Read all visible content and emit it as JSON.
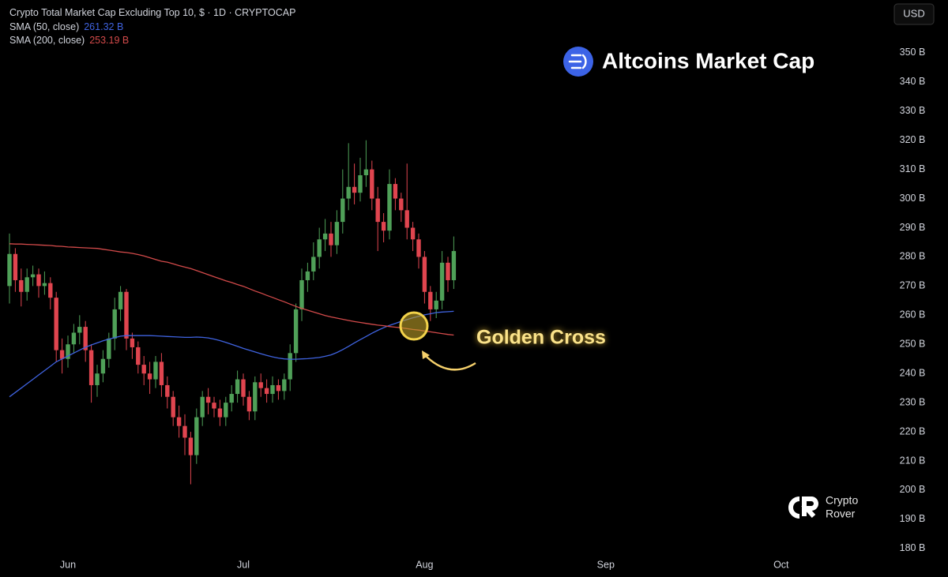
{
  "chart_data": {
    "type": "candlestick",
    "title": "Crypto Total Market Cap Excluding Top 10, $ · 1D · CRYPTOCAP",
    "currency": "USD",
    "up_color": "#4fa058",
    "down_color": "#e0454f",
    "categories": [
      null,
      null,
      null,
      null,
      null,
      null,
      null,
      null,
      null,
      null,
      "Jun",
      null,
      null,
      null,
      null,
      null,
      null,
      null,
      null,
      null,
      null,
      null,
      null,
      null,
      null,
      null,
      null,
      null,
      null,
      null,
      null,
      null,
      null,
      null,
      null,
      null,
      null,
      null,
      null,
      null,
      "Jul",
      null,
      null,
      null,
      null,
      null,
      null,
      null,
      null,
      null,
      null,
      null,
      null,
      null,
      null,
      null,
      null,
      null,
      null,
      null,
      null,
      null,
      null,
      null,
      null,
      null,
      null,
      null,
      null,
      null,
      null,
      "Aug",
      null,
      null,
      null,
      null,
      null,
      null,
      null,
      null,
      null,
      null,
      null,
      null,
      null,
      null,
      null,
      null,
      null,
      null,
      null,
      null,
      null,
      null,
      null,
      null,
      null,
      null,
      null,
      null,
      null,
      null,
      "Sep",
      null,
      null,
      null,
      null,
      null,
      null,
      null,
      null,
      null,
      null,
      null,
      null,
      null,
      null,
      null,
      null,
      null,
      null,
      null,
      null,
      null,
      null,
      null,
      null,
      null,
      null,
      null,
      null,
      null,
      "Oct",
      null,
      null,
      null,
      null,
      null,
      null,
      null,
      null,
      null,
      null,
      null,
      null,
      null,
      null,
      null
    ],
    "open": [
      270,
      281,
      272,
      268,
      273,
      274,
      270,
      271,
      266,
      248,
      245,
      250,
      254,
      256,
      248,
      236,
      240,
      245,
      252,
      262,
      268,
      252,
      249,
      243,
      240,
      238,
      244,
      236,
      232,
      225,
      222,
      218,
      212,
      225,
      232,
      230,
      228,
      225,
      230,
      233,
      238,
      232,
      227,
      237,
      235,
      233,
      236,
      234,
      238,
      247,
      262,
      272,
      275,
      280,
      286,
      288,
      284,
      292,
      300,
      304,
      302,
      308,
      310,
      300,
      292,
      289,
      305,
      300,
      296,
      290,
      286,
      280,
      268,
      262,
      265,
      278,
      272,
      null,
      null,
      null,
      null,
      null,
      null,
      null,
      null,
      null,
      null,
      null,
      null,
      null,
      null,
      null,
      null,
      null,
      null,
      null,
      null,
      null,
      null,
      null,
      null,
      null,
      null,
      null,
      null,
      null,
      null,
      null,
      null,
      null,
      null,
      null,
      null,
      null,
      null,
      null,
      null,
      null,
      null,
      null,
      null,
      null,
      null,
      null,
      null,
      null,
      null,
      null,
      null,
      null,
      null,
      null,
      null,
      null,
      null,
      null,
      null,
      null,
      null,
      null,
      null,
      null,
      null,
      null,
      null,
      null,
      null,
      null
    ],
    "high": [
      288,
      283,
      276,
      276,
      277,
      276,
      275,
      273,
      268,
      252,
      253,
      257,
      260,
      258,
      250,
      243,
      248,
      254,
      266,
      270,
      269,
      254,
      251,
      246,
      244,
      246,
      247,
      239,
      234,
      229,
      226,
      220,
      228,
      234,
      235,
      232,
      231,
      232,
      236,
      241,
      240,
      234,
      239,
      240,
      238,
      239,
      238,
      240,
      250,
      264,
      276,
      278,
      285,
      290,
      293,
      292,
      296,
      310,
      319,
      312,
      314,
      320,
      313,
      304,
      295,
      310,
      307,
      302,
      312,
      292,
      288,
      282,
      270,
      268,
      282,
      280,
      287,
      null,
      null,
      null,
      null,
      null,
      null,
      null,
      null,
      null,
      null,
      null,
      null,
      null,
      null,
      null,
      null,
      null,
      null,
      null,
      null,
      null,
      null,
      null,
      null,
      null,
      null,
      null,
      null,
      null,
      null,
      null,
      null,
      null,
      null,
      null,
      null,
      null,
      null,
      null,
      null,
      null,
      null,
      null,
      null,
      null,
      null,
      null,
      null,
      null,
      null,
      null,
      null,
      null,
      null,
      null,
      null,
      null,
      null,
      null,
      null,
      null,
      null,
      null,
      null,
      null,
      null,
      null,
      null,
      null,
      null,
      null
    ],
    "low": [
      264,
      268,
      263,
      265,
      270,
      266,
      267,
      262,
      244,
      240,
      242,
      247,
      250,
      244,
      230,
      232,
      237,
      242,
      248,
      258,
      248,
      245,
      240,
      236,
      233,
      235,
      232,
      228,
      222,
      218,
      212,
      202,
      209,
      222,
      226,
      225,
      222,
      222,
      227,
      230,
      229,
      224,
      224,
      232,
      230,
      230,
      231,
      231,
      234,
      244,
      258,
      268,
      272,
      276,
      282,
      280,
      281,
      288,
      296,
      298,
      299,
      304,
      296,
      282,
      285,
      286,
      296,
      292,
      286,
      282,
      276,
      264,
      258,
      259,
      262,
      268,
      269,
      null,
      null,
      null,
      null,
      null,
      null,
      null,
      null,
      null,
      null,
      null,
      null,
      null,
      null,
      null,
      null,
      null,
      null,
      null,
      null,
      null,
      null,
      null,
      null,
      null,
      null,
      null,
      null,
      null,
      null,
      null,
      null,
      null,
      null,
      null,
      null,
      null,
      null,
      null,
      null,
      null,
      null,
      null,
      null,
      null,
      null,
      null,
      null,
      null,
      null,
      null,
      null,
      null,
      null,
      null,
      null,
      null,
      null,
      null,
      null,
      null,
      null,
      null,
      null,
      null,
      null,
      null,
      null,
      null,
      null,
      null
    ],
    "close": [
      281,
      272,
      268,
      273,
      274,
      270,
      271,
      266,
      248,
      245,
      250,
      254,
      256,
      248,
      236,
      240,
      245,
      252,
      262,
      268,
      252,
      249,
      243,
      240,
      238,
      244,
      236,
      232,
      225,
      222,
      218,
      212,
      225,
      232,
      230,
      228,
      225,
      230,
      233,
      238,
      232,
      227,
      237,
      235,
      233,
      236,
      234,
      238,
      247,
      262,
      272,
      275,
      280,
      286,
      288,
      284,
      292,
      300,
      304,
      302,
      308,
      310,
      300,
      292,
      289,
      305,
      300,
      296,
      290,
      286,
      280,
      268,
      262,
      265,
      278,
      272,
      282,
      null,
      null,
      null,
      null,
      null,
      null,
      null,
      null,
      null,
      null,
      null,
      null,
      null,
      null,
      null,
      null,
      null,
      null,
      null,
      null,
      null,
      null,
      null,
      null,
      null,
      null,
      null,
      null,
      null,
      null,
      null,
      null,
      null,
      null,
      null,
      null,
      null,
      null,
      null,
      null,
      null,
      null,
      null,
      null,
      null,
      null,
      null,
      null,
      null,
      null,
      null,
      null,
      null,
      null,
      null,
      null,
      null,
      null,
      null,
      null,
      null,
      null,
      null,
      null,
      null,
      null,
      null,
      null,
      null,
      null,
      null
    ],
    "series": [
      {
        "name": "SMA (50, close)",
        "color": "#3f63e0",
        "last_label": "261.32 B",
        "values": [
          232,
          233.5,
          235,
          236.5,
          238,
          239.5,
          241,
          242.5,
          244,
          245,
          246,
          247,
          248,
          249,
          249.8,
          250.5,
          251.2,
          251.8,
          252.3,
          252.8,
          253,
          253,
          253,
          253,
          253,
          252.9,
          252.8,
          252.7,
          252.6,
          252.5,
          252.4,
          252.4,
          252.5,
          252.4,
          252.2,
          251.8,
          251.3,
          250.7,
          250,
          249.3,
          248.6,
          248,
          247.4,
          246.8,
          246.2,
          245.7,
          245.3,
          245,
          244.9,
          244.9,
          245,
          245.1,
          245.3,
          245.5,
          245.9,
          246.4,
          247.2,
          248.2,
          249.3,
          250.5,
          251.6,
          252.7,
          253.8,
          254.8,
          255.7,
          256.5,
          257.2,
          257.9,
          258.5,
          259.1,
          259.6,
          260.1,
          260.5,
          260.9,
          261.1,
          261.2,
          261.32,
          null,
          null,
          null,
          null,
          null,
          null,
          null,
          null,
          null,
          null,
          null,
          null,
          null,
          null,
          null,
          null,
          null,
          null,
          null,
          null,
          null,
          null,
          null,
          null,
          null,
          null,
          null,
          null,
          null,
          null,
          null,
          null,
          null,
          null,
          null,
          null,
          null,
          null,
          null,
          null,
          null,
          null,
          null,
          null,
          null,
          null,
          null,
          null,
          null,
          null,
          null,
          null,
          null,
          null,
          null,
          null,
          null,
          null,
          null,
          null,
          null,
          null,
          null,
          null,
          null,
          null,
          null,
          null,
          null,
          null,
          null
        ]
      },
      {
        "name": "SMA (200, close)",
        "color": "#d24a4a",
        "last_label": "253.19 B",
        "values": [
          284.5,
          284.4,
          284.4,
          284.3,
          284.2,
          284.1,
          284,
          283.9,
          283.7,
          283.6,
          283.4,
          283.3,
          283.2,
          283.1,
          283,
          282.9,
          282.6,
          282.3,
          282,
          281.7,
          281.5,
          281.2,
          280.8,
          280.3,
          279.7,
          279.1,
          278.5,
          278.2,
          277.6,
          277,
          276.5,
          276,
          275.3,
          274.6,
          273.9,
          273.2,
          272.5,
          271.8,
          271.2,
          270.5,
          269.9,
          269.1,
          268.3,
          267.6,
          266.8,
          266.1,
          265.3,
          264.6,
          263.8,
          263,
          262.3,
          261.7,
          261.1,
          260.5,
          259.9,
          259.4,
          259,
          258.6,
          258.2,
          257.8,
          257.5,
          257.2,
          256.9,
          256.6,
          256.4,
          256.1,
          255.9,
          255.7,
          255.4,
          255.1,
          254.9,
          254.6,
          254.3,
          254,
          253.7,
          253.4,
          253.19,
          null,
          null,
          null,
          null,
          null,
          null,
          null,
          null,
          null,
          null,
          null,
          null,
          null,
          null,
          null,
          null,
          null,
          null,
          null,
          null,
          null,
          null,
          null,
          null,
          null,
          null,
          null,
          null,
          null,
          null,
          null,
          null,
          null,
          null,
          null,
          null,
          null,
          null,
          null,
          null,
          null,
          null,
          null,
          null,
          null,
          null,
          null,
          null,
          null,
          null,
          null,
          null,
          null,
          null,
          null,
          null,
          null,
          null,
          null,
          null,
          null,
          null,
          null,
          null,
          null,
          null,
          null,
          null,
          null,
          null,
          null
        ]
      }
    ],
    "ylim": [
      178.6,
      368.1
    ],
    "yticks": [
      {
        "value": 180,
        "label": "180 B"
      },
      {
        "value": 190,
        "label": "190 B"
      },
      {
        "value": 200,
        "label": "200 B"
      },
      {
        "value": 210,
        "label": "210 B"
      },
      {
        "value": 220,
        "label": "220 B"
      },
      {
        "value": 230,
        "label": "230 B"
      },
      {
        "value": 240,
        "label": "240 B"
      },
      {
        "value": 250,
        "label": "250 B"
      },
      {
        "value": 260,
        "label": "260 B"
      },
      {
        "value": 270,
        "label": "270 B"
      },
      {
        "value": 280,
        "label": "280 B"
      },
      {
        "value": 290,
        "label": "290 B"
      },
      {
        "value": 300,
        "label": "300 B"
      },
      {
        "value": 310,
        "label": "310 B"
      },
      {
        "value": 320,
        "label": "320 B"
      },
      {
        "value": 330,
        "label": "330 B"
      },
      {
        "value": 340,
        "label": "340 B"
      },
      {
        "value": 350,
        "label": "350 B"
      }
    ],
    "grid": false,
    "annotation": "Golden Cross"
  },
  "brand": "Altcoins Market Cap",
  "watermark": [
    "Crypto",
    "Rover"
  ]
}
